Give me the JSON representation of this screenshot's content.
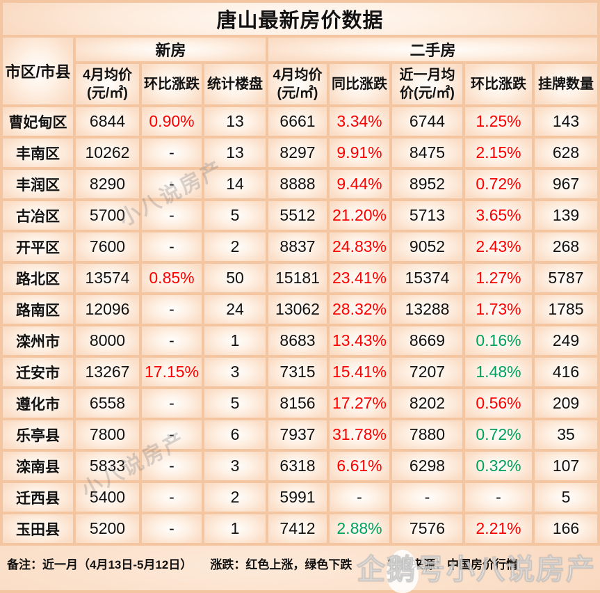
{
  "colors": {
    "up_red": "#fe0000",
    "down_green": "#00a05e",
    "grid_peach": "#f4c5a1",
    "text_black": "#121212"
  },
  "chart_data": {
    "type": "table",
    "title": "唐山最新房价数据",
    "region_header": "市区/市县",
    "groups": [
      {
        "label": "新房",
        "span": 3
      },
      {
        "label": "二手房",
        "span": 5
      }
    ],
    "columns": [
      "4月均价(元/㎡)",
      "环比涨跌",
      "统计楼盘",
      "4月均价(元/㎡)",
      "同比涨跌",
      "近一月均价(元/㎡)",
      "环比涨跌",
      "挂牌数量"
    ],
    "color_legend": {
      "red": "上涨",
      "green": "下跌"
    },
    "rows": [
      {
        "region": "曹妃甸区",
        "cells": [
          {
            "v": "6844",
            "c": "k"
          },
          {
            "v": "0.90%",
            "c": "r"
          },
          {
            "v": "13",
            "c": "k"
          },
          {
            "v": "6661",
            "c": "k"
          },
          {
            "v": "3.34%",
            "c": "r"
          },
          {
            "v": "6744",
            "c": "k"
          },
          {
            "v": "1.25%",
            "c": "r"
          },
          {
            "v": "143",
            "c": "k"
          }
        ]
      },
      {
        "region": "丰南区",
        "cells": [
          {
            "v": "10262",
            "c": "k"
          },
          {
            "v": "-",
            "c": "k"
          },
          {
            "v": "13",
            "c": "k"
          },
          {
            "v": "8297",
            "c": "k"
          },
          {
            "v": "9.91%",
            "c": "r"
          },
          {
            "v": "8475",
            "c": "k"
          },
          {
            "v": "2.15%",
            "c": "r"
          },
          {
            "v": "628",
            "c": "k"
          }
        ]
      },
      {
        "region": "丰润区",
        "cells": [
          {
            "v": "8290",
            "c": "k"
          },
          {
            "v": "-",
            "c": "k"
          },
          {
            "v": "14",
            "c": "k"
          },
          {
            "v": "8888",
            "c": "k"
          },
          {
            "v": "9.44%",
            "c": "r"
          },
          {
            "v": "8952",
            "c": "k"
          },
          {
            "v": "0.72%",
            "c": "r"
          },
          {
            "v": "967",
            "c": "k"
          }
        ]
      },
      {
        "region": "古冶区",
        "cells": [
          {
            "v": "5700",
            "c": "k"
          },
          {
            "v": "-",
            "c": "k"
          },
          {
            "v": "5",
            "c": "k"
          },
          {
            "v": "5512",
            "c": "k"
          },
          {
            "v": "21.20%",
            "c": "r"
          },
          {
            "v": "5713",
            "c": "k"
          },
          {
            "v": "3.65%",
            "c": "r"
          },
          {
            "v": "139",
            "c": "k"
          }
        ]
      },
      {
        "region": "开平区",
        "cells": [
          {
            "v": "7600",
            "c": "k"
          },
          {
            "v": "-",
            "c": "k"
          },
          {
            "v": "2",
            "c": "k"
          },
          {
            "v": "8837",
            "c": "k"
          },
          {
            "v": "24.83%",
            "c": "r"
          },
          {
            "v": "9052",
            "c": "k"
          },
          {
            "v": "2.43%",
            "c": "r"
          },
          {
            "v": "268",
            "c": "k"
          }
        ]
      },
      {
        "region": "路北区",
        "cells": [
          {
            "v": "13574",
            "c": "k"
          },
          {
            "v": "0.85%",
            "c": "r"
          },
          {
            "v": "50",
            "c": "k"
          },
          {
            "v": "15181",
            "c": "k"
          },
          {
            "v": "23.41%",
            "c": "r"
          },
          {
            "v": "15374",
            "c": "k"
          },
          {
            "v": "1.27%",
            "c": "r"
          },
          {
            "v": "5787",
            "c": "k"
          }
        ]
      },
      {
        "region": "路南区",
        "cells": [
          {
            "v": "12096",
            "c": "k"
          },
          {
            "v": "-",
            "c": "k"
          },
          {
            "v": "24",
            "c": "k"
          },
          {
            "v": "13062",
            "c": "k"
          },
          {
            "v": "28.32%",
            "c": "r"
          },
          {
            "v": "13288",
            "c": "k"
          },
          {
            "v": "1.73%",
            "c": "r"
          },
          {
            "v": "1785",
            "c": "k"
          }
        ]
      },
      {
        "region": "滦州市",
        "cells": [
          {
            "v": "8000",
            "c": "k"
          },
          {
            "v": "-",
            "c": "k"
          },
          {
            "v": "1",
            "c": "k"
          },
          {
            "v": "8683",
            "c": "k"
          },
          {
            "v": "13.43%",
            "c": "r"
          },
          {
            "v": "8669",
            "c": "k"
          },
          {
            "v": "0.16%",
            "c": "g"
          },
          {
            "v": "249",
            "c": "k"
          }
        ]
      },
      {
        "region": "迁安市",
        "cells": [
          {
            "v": "13267",
            "c": "k"
          },
          {
            "v": "17.15%",
            "c": "r"
          },
          {
            "v": "3",
            "c": "k"
          },
          {
            "v": "7315",
            "c": "k"
          },
          {
            "v": "15.41%",
            "c": "r"
          },
          {
            "v": "7207",
            "c": "k"
          },
          {
            "v": "1.48%",
            "c": "g"
          },
          {
            "v": "416",
            "c": "k"
          }
        ]
      },
      {
        "region": "遵化市",
        "cells": [
          {
            "v": "6558",
            "c": "k"
          },
          {
            "v": "-",
            "c": "k"
          },
          {
            "v": "5",
            "c": "k"
          },
          {
            "v": "8156",
            "c": "k"
          },
          {
            "v": "17.27%",
            "c": "r"
          },
          {
            "v": "8202",
            "c": "k"
          },
          {
            "v": "0.56%",
            "c": "r"
          },
          {
            "v": "209",
            "c": "k"
          }
        ]
      },
      {
        "region": "乐亭县",
        "cells": [
          {
            "v": "7800",
            "c": "k"
          },
          {
            "v": "-",
            "c": "k"
          },
          {
            "v": "6",
            "c": "k"
          },
          {
            "v": "7937",
            "c": "k"
          },
          {
            "v": "31.78%",
            "c": "r"
          },
          {
            "v": "7880",
            "c": "k"
          },
          {
            "v": "0.72%",
            "c": "g"
          },
          {
            "v": "35",
            "c": "k"
          }
        ]
      },
      {
        "region": "滦南县",
        "cells": [
          {
            "v": "5833",
            "c": "k"
          },
          {
            "v": "-",
            "c": "k"
          },
          {
            "v": "3",
            "c": "k"
          },
          {
            "v": "6318",
            "c": "k"
          },
          {
            "v": "6.61%",
            "c": "r"
          },
          {
            "v": "6298",
            "c": "k"
          },
          {
            "v": "0.32%",
            "c": "g"
          },
          {
            "v": "107",
            "c": "k"
          }
        ]
      },
      {
        "region": "迁西县",
        "cells": [
          {
            "v": "5400",
            "c": "k"
          },
          {
            "v": "-",
            "c": "k"
          },
          {
            "v": "2",
            "c": "k"
          },
          {
            "v": "5991",
            "c": "k"
          },
          {
            "v": "-",
            "c": "k"
          },
          {
            "v": "-",
            "c": "k"
          },
          {
            "v": "-",
            "c": "k"
          },
          {
            "v": "5",
            "c": "k"
          }
        ]
      },
      {
        "region": "玉田县",
        "cells": [
          {
            "v": "5200",
            "c": "k"
          },
          {
            "v": "-",
            "c": "k"
          },
          {
            "v": "1",
            "c": "k"
          },
          {
            "v": "7412",
            "c": "k"
          },
          {
            "v": "2.88%",
            "c": "g"
          },
          {
            "v": "7576",
            "c": "k"
          },
          {
            "v": "2.21%",
            "c": "r"
          },
          {
            "v": "166",
            "c": "k"
          }
        ]
      }
    ]
  },
  "footer": {
    "note": "备注：近一月（4月13日-5月12日）",
    "legend": "涨跌：红色上涨，绿色下跌",
    "source": "数据来源：中国房价行情"
  },
  "watermarks": {
    "diagonal": "小八说房产",
    "corner": "企鹅号小八说房产"
  }
}
